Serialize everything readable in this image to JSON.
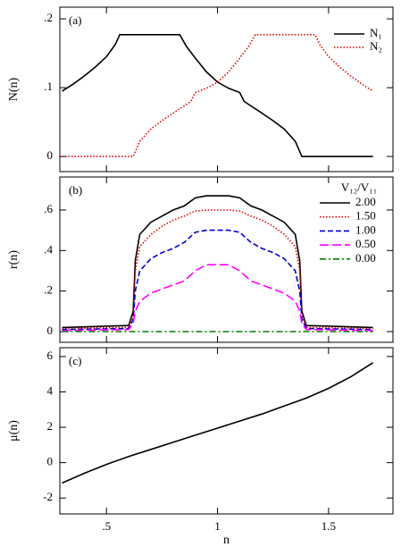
{
  "chart_data": [
    {
      "type": "line",
      "label": "(a)",
      "ylabel": "N(n)",
      "legend": "upper right",
      "xlim": [
        0.29,
        1.79
      ],
      "ylim": [
        -0.022,
        0.217
      ],
      "yticks": [
        0,
        {
          "value": 0.1,
          "label": ".1"
        },
        {
          "value": 0.2,
          "label": ".2"
        }
      ],
      "series": [
        {
          "name": "N₁",
          "color": "#000000",
          "dash": "solid",
          "x": [
            0.3,
            0.35,
            0.4,
            0.45,
            0.5,
            0.54,
            0.56,
            0.83,
            0.86,
            0.9,
            0.95,
            1.0,
            1.05,
            1.1,
            1.12,
            1.2,
            1.25,
            1.3,
            1.35,
            1.38,
            1.7
          ],
          "values": [
            0.095,
            0.105,
            0.117,
            0.13,
            0.145,
            0.163,
            0.177,
            0.177,
            0.16,
            0.143,
            0.123,
            0.108,
            0.099,
            0.093,
            0.08,
            0.063,
            0.052,
            0.04,
            0.022,
            0,
            0
          ]
        },
        {
          "name": "N₂",
          "color": "#e00000",
          "dash": "dotted",
          "x": [
            0.3,
            0.62,
            0.65,
            0.7,
            0.75,
            0.8,
            0.88,
            0.9,
            0.95,
            1.0,
            1.05,
            1.1,
            1.14,
            1.17,
            1.44,
            1.46,
            1.5,
            1.55,
            1.6,
            1.65,
            1.7
          ],
          "values": [
            0,
            0,
            0.022,
            0.04,
            0.052,
            0.063,
            0.08,
            0.093,
            0.099,
            0.108,
            0.123,
            0.143,
            0.16,
            0.177,
            0.177,
            0.163,
            0.145,
            0.13,
            0.117,
            0.105,
            0.095
          ]
        }
      ]
    },
    {
      "type": "line",
      "label": "(b)",
      "ylabel": "r(n)",
      "legend": "upper right",
      "legend_title": "V₁₂/V₁₁",
      "xlim": [
        0.29,
        1.79
      ],
      "ylim": [
        -0.053,
        0.763
      ],
      "yticks": [
        0,
        {
          "value": 0.2,
          "label": ".2"
        },
        {
          "value": 0.4,
          "label": ".4"
        },
        {
          "value": 0.6,
          "label": ".6"
        }
      ],
      "x": [
        0.3,
        0.6,
        0.62,
        0.63,
        0.65,
        0.7,
        0.75,
        0.8,
        0.85,
        0.9,
        0.95,
        1.0,
        1.05,
        1.1,
        1.15,
        1.2,
        1.25,
        1.3,
        1.35,
        1.37,
        1.38,
        1.4,
        1.7
      ],
      "series": [
        {
          "name": "2.00",
          "color": "#000000",
          "dash": "solid",
          "values": [
            0.02,
            0.03,
            0.1,
            0.35,
            0.48,
            0.54,
            0.57,
            0.6,
            0.62,
            0.66,
            0.67,
            0.67,
            0.67,
            0.66,
            0.62,
            0.6,
            0.57,
            0.54,
            0.48,
            0.35,
            0.1,
            0.03,
            0.02
          ]
        },
        {
          "name": "1.50",
          "color": "#e00000",
          "dash": "dotted",
          "values": [
            0.015,
            0.02,
            0.08,
            0.3,
            0.42,
            0.48,
            0.52,
            0.55,
            0.57,
            0.595,
            0.6,
            0.6,
            0.6,
            0.595,
            0.57,
            0.55,
            0.52,
            0.48,
            0.42,
            0.3,
            0.08,
            0.02,
            0.015
          ]
        },
        {
          "name": "1.00",
          "color": "#0000d0",
          "dash": "dashed",
          "values": [
            0.01,
            0.015,
            0.06,
            0.2,
            0.3,
            0.36,
            0.39,
            0.41,
            0.44,
            0.49,
            0.5,
            0.5,
            0.5,
            0.49,
            0.44,
            0.41,
            0.39,
            0.36,
            0.3,
            0.2,
            0.06,
            0.015,
            0.01
          ]
        },
        {
          "name": "0.50",
          "color": "#ff00ff",
          "dash": "longdash",
          "values": [
            0.005,
            0.01,
            0.04,
            0.1,
            0.15,
            0.19,
            0.21,
            0.23,
            0.25,
            0.3,
            0.33,
            0.33,
            0.33,
            0.3,
            0.25,
            0.23,
            0.21,
            0.19,
            0.15,
            0.1,
            0.04,
            0.01,
            0.005
          ]
        },
        {
          "name": "0.00",
          "color": "#008000",
          "dash": "dashdot",
          "values": [
            0,
            0,
            0,
            0,
            0,
            0,
            0,
            0,
            0,
            0,
            0,
            0,
            0,
            0,
            0,
            0,
            0,
            0,
            0,
            0,
            0,
            0,
            0
          ]
        }
      ]
    },
    {
      "type": "line",
      "label": "(c)",
      "ylabel": "μ(n)",
      "xlabel": "n",
      "xlim": [
        0.29,
        1.79
      ],
      "ylim": [
        -2.9,
        6.5
      ],
      "xticks": [
        {
          "value": 0.5,
          "label": ".5"
        },
        1,
        1.5
      ],
      "yticks": [
        -2,
        0,
        2,
        4,
        6
      ],
      "x": [
        0.3,
        0.4,
        0.5,
        0.6,
        0.7,
        0.8,
        0.9,
        1.0,
        1.1,
        1.2,
        1.3,
        1.4,
        1.5,
        1.6,
        1.7
      ],
      "series": [
        {
          "color": "#000000",
          "dash": "solid",
          "values": [
            -1.15,
            -0.6,
            -0.1,
            0.35,
            0.75,
            1.15,
            1.55,
            1.95,
            2.35,
            2.75,
            3.2,
            3.65,
            4.2,
            4.85,
            5.65
          ]
        }
      ]
    }
  ]
}
